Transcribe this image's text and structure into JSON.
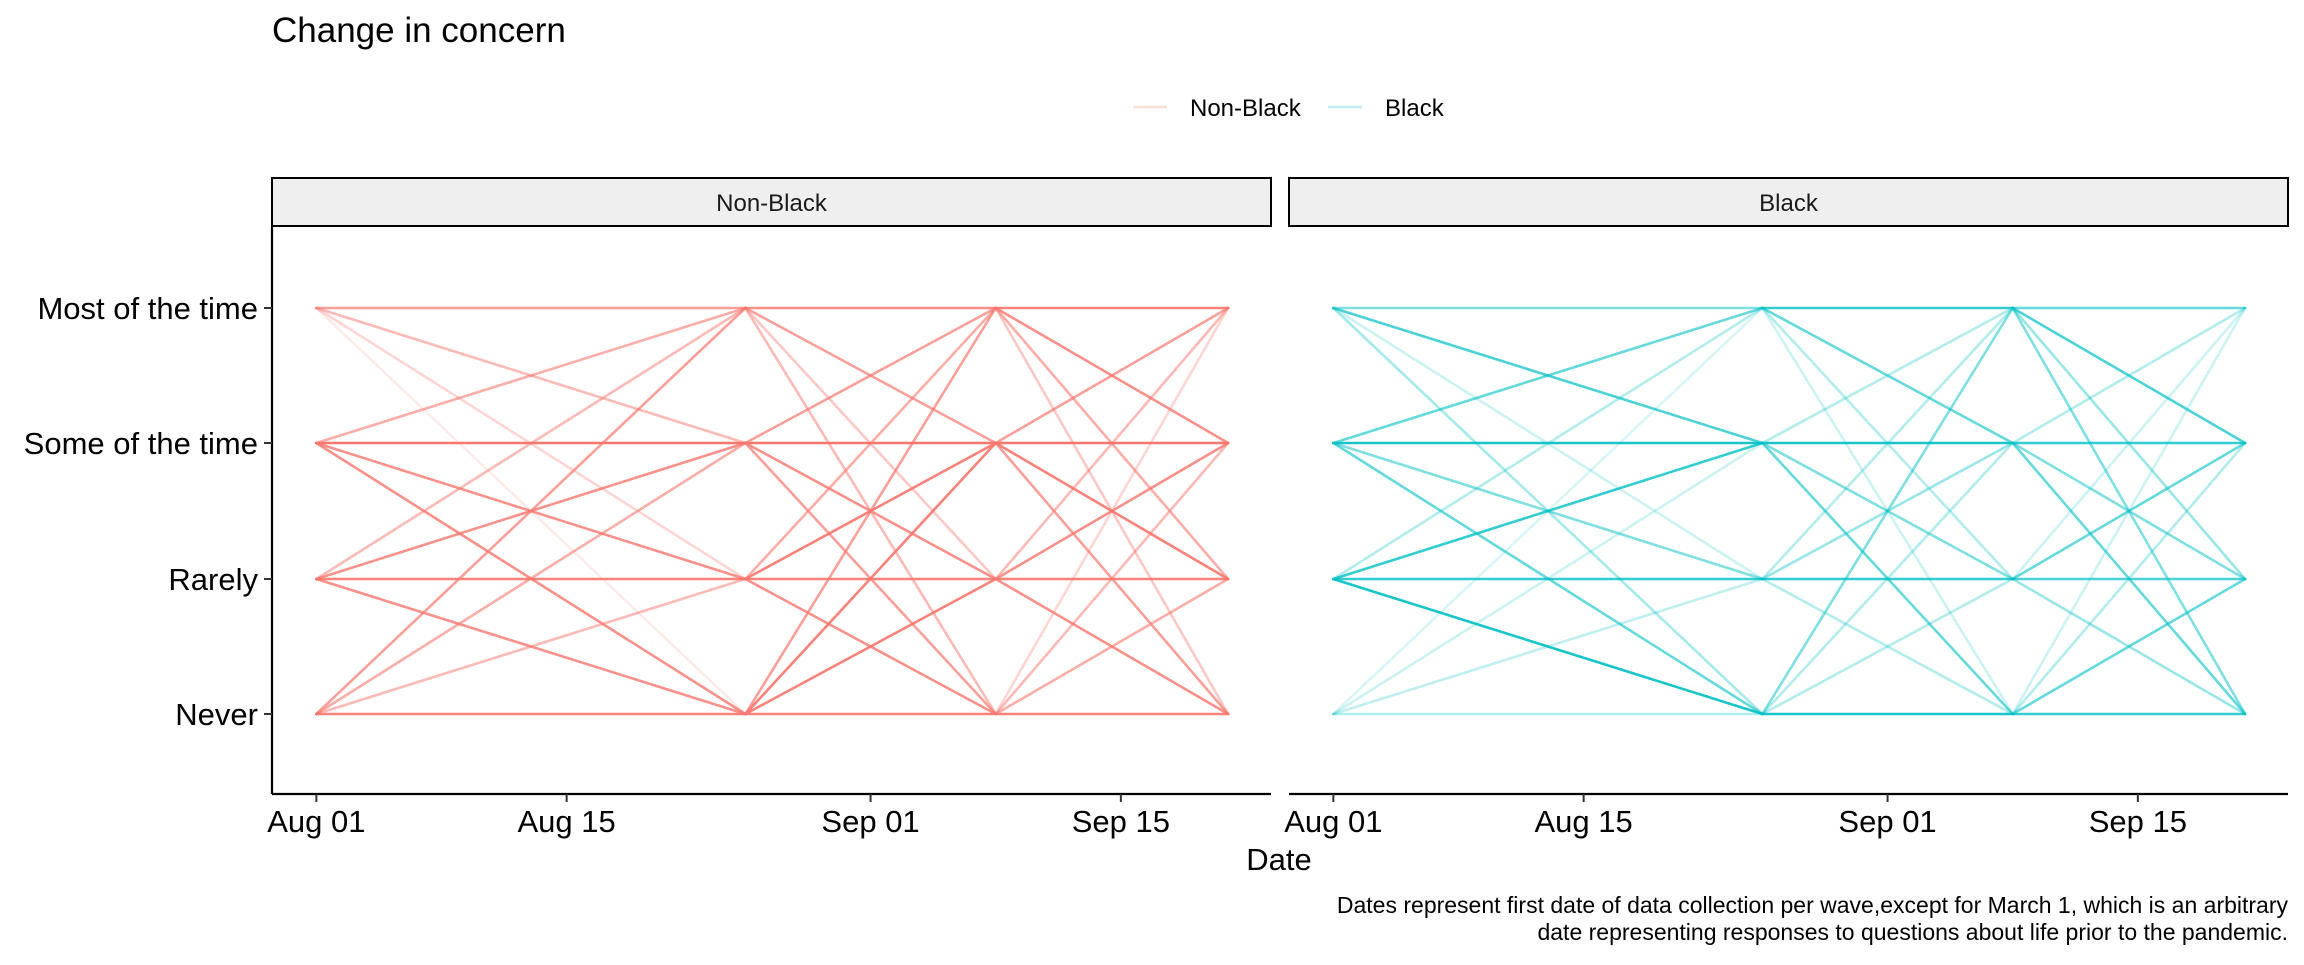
{
  "chart_data": {
    "type": "line",
    "title": "Change in concern",
    "xlabel": "Date",
    "ylabel": "",
    "caption": [
      "Dates represent first date of data collection per wave,except for March 1, which is an arbitrary",
      "date representing responses to questions about life prior to the pandemic."
    ],
    "legend": {
      "position": "top",
      "entries": [
        {
          "name": "Non-Black",
          "color": "#F8766D"
        },
        {
          "name": "Black",
          "color": "#00BFC4"
        }
      ]
    },
    "grid": false,
    "y_levels": [
      "Never",
      "Rarely",
      "Some of the time",
      "Most of the time"
    ],
    "x_range": [
      "2020-07-30",
      "2020-09-25"
    ],
    "x_ticks": [
      {
        "date": "2020-08-01",
        "label": "Aug 01"
      },
      {
        "date": "2020-08-15",
        "label": "Aug 15"
      },
      {
        "date": "2020-09-01",
        "label": "Sep 01"
      },
      {
        "date": "2020-09-15",
        "label": "Sep 15"
      }
    ],
    "waves": [
      "2020-08-01",
      "2020-08-25",
      "2020-09-08",
      "2020-09-21"
    ],
    "panels": [
      {
        "name": "Non-Black",
        "color": "#F8766D",
        "transitions": [
          [
            {
              "from": "Never",
              "to": "Never",
              "weight": 0.9
            },
            {
              "from": "Never",
              "to": "Rarely",
              "weight": 0.5
            },
            {
              "from": "Never",
              "to": "Some of the time",
              "weight": 0.6
            },
            {
              "from": "Never",
              "to": "Most of the time",
              "weight": 0.7
            },
            {
              "from": "Rarely",
              "to": "Never",
              "weight": 0.8
            },
            {
              "from": "Rarely",
              "to": "Rarely",
              "weight": 0.9
            },
            {
              "from": "Rarely",
              "to": "Some of the time",
              "weight": 0.8
            },
            {
              "from": "Rarely",
              "to": "Most of the time",
              "weight": 0.5
            },
            {
              "from": "Some of the time",
              "to": "Never",
              "weight": 0.8
            },
            {
              "from": "Some of the time",
              "to": "Rarely",
              "weight": 0.8
            },
            {
              "from": "Some of the time",
              "to": "Some of the time",
              "weight": 1.0
            },
            {
              "from": "Some of the time",
              "to": "Most of the time",
              "weight": 0.6
            },
            {
              "from": "Most of the time",
              "to": "Never",
              "weight": 0.15
            },
            {
              "from": "Most of the time",
              "to": "Rarely",
              "weight": 0.3
            },
            {
              "from": "Most of the time",
              "to": "Some of the time",
              "weight": 0.5
            },
            {
              "from": "Most of the time",
              "to": "Most of the time",
              "weight": 0.7
            }
          ],
          [
            {
              "from": "Never",
              "to": "Never",
              "weight": 0.9
            },
            {
              "from": "Never",
              "to": "Rarely",
              "weight": 0.9
            },
            {
              "from": "Never",
              "to": "Some of the time",
              "weight": 0.9
            },
            {
              "from": "Never",
              "to": "Most of the time",
              "weight": 0.7
            },
            {
              "from": "Rarely",
              "to": "Never",
              "weight": 0.8
            },
            {
              "from": "Rarely",
              "to": "Rarely",
              "weight": 0.9
            },
            {
              "from": "Rarely",
              "to": "Some of the time",
              "weight": 0.9
            },
            {
              "from": "Rarely",
              "to": "Most of the time",
              "weight": 0.6
            },
            {
              "from": "Some of the time",
              "to": "Never",
              "weight": 0.7
            },
            {
              "from": "Some of the time",
              "to": "Rarely",
              "weight": 0.8
            },
            {
              "from": "Some of the time",
              "to": "Some of the time",
              "weight": 1.0
            },
            {
              "from": "Some of the time",
              "to": "Most of the time",
              "weight": 0.7
            },
            {
              "from": "Most of the time",
              "to": "Never",
              "weight": 0.5
            },
            {
              "from": "Most of the time",
              "to": "Rarely",
              "weight": 0.4
            },
            {
              "from": "Most of the time",
              "to": "Some of the time",
              "weight": 0.7
            },
            {
              "from": "Most of the time",
              "to": "Most of the time",
              "weight": 0.8
            }
          ],
          [
            {
              "from": "Never",
              "to": "Never",
              "weight": 0.9
            },
            {
              "from": "Never",
              "to": "Rarely",
              "weight": 0.6
            },
            {
              "from": "Never",
              "to": "Some of the time",
              "weight": 0.5
            },
            {
              "from": "Never",
              "to": "Most of the time",
              "weight": 0.3
            },
            {
              "from": "Rarely",
              "to": "Never",
              "weight": 0.8
            },
            {
              "from": "Rarely",
              "to": "Rarely",
              "weight": 0.9
            },
            {
              "from": "Rarely",
              "to": "Some of the time",
              "weight": 0.8
            },
            {
              "from": "Rarely",
              "to": "Most of the time",
              "weight": 0.5
            },
            {
              "from": "Some of the time",
              "to": "Never",
              "weight": 0.7
            },
            {
              "from": "Some of the time",
              "to": "Rarely",
              "weight": 0.9
            },
            {
              "from": "Some of the time",
              "to": "Some of the time",
              "weight": 1.0
            },
            {
              "from": "Some of the time",
              "to": "Most of the time",
              "weight": 0.7
            },
            {
              "from": "Most of the time",
              "to": "Never",
              "weight": 0.4
            },
            {
              "from": "Most of the time",
              "to": "Rarely",
              "weight": 0.6
            },
            {
              "from": "Most of the time",
              "to": "Some of the time",
              "weight": 0.8
            },
            {
              "from": "Most of the time",
              "to": "Most of the time",
              "weight": 0.9
            }
          ]
        ]
      },
      {
        "name": "Black",
        "color": "#00BFC4",
        "transitions": [
          [
            {
              "from": "Never",
              "to": "Never",
              "weight": 0.3
            },
            {
              "from": "Never",
              "to": "Rarely",
              "weight": 0.25
            },
            {
              "from": "Never",
              "to": "Some of the time",
              "weight": 0.2
            },
            {
              "from": "Never",
              "to": "Most of the time",
              "weight": 0.15
            },
            {
              "from": "Rarely",
              "to": "Never",
              "weight": 0.9
            },
            {
              "from": "Rarely",
              "to": "Rarely",
              "weight": 0.8
            },
            {
              "from": "Rarely",
              "to": "Some of the time",
              "weight": 0.8
            },
            {
              "from": "Rarely",
              "to": "Most of the time",
              "weight": 0.3
            },
            {
              "from": "Some of the time",
              "to": "Never",
              "weight": 0.6
            },
            {
              "from": "Some of the time",
              "to": "Rarely",
              "weight": 0.5
            },
            {
              "from": "Some of the time",
              "to": "Some of the time",
              "weight": 0.9
            },
            {
              "from": "Some of the time",
              "to": "Most of the time",
              "weight": 0.6
            },
            {
              "from": "Most of the time",
              "to": "Never",
              "weight": 0.35
            },
            {
              "from": "Most of the time",
              "to": "Rarely",
              "weight": 0.2
            },
            {
              "from": "Most of the time",
              "to": "Some of the time",
              "weight": 0.7
            },
            {
              "from": "Most of the time",
              "to": "Most of the time",
              "weight": 0.5
            }
          ],
          [
            {
              "from": "Never",
              "to": "Never",
              "weight": 0.9
            },
            {
              "from": "Never",
              "to": "Rarely",
              "weight": 0.3
            },
            {
              "from": "Never",
              "to": "Some of the time",
              "weight": 0.3
            },
            {
              "from": "Never",
              "to": "Most of the time",
              "weight": 0.5
            },
            {
              "from": "Rarely",
              "to": "Never",
              "weight": 0.3
            },
            {
              "from": "Rarely",
              "to": "Rarely",
              "weight": 0.8
            },
            {
              "from": "Rarely",
              "to": "Some of the time",
              "weight": 0.4
            },
            {
              "from": "Rarely",
              "to": "Most of the time",
              "weight": 0.3
            },
            {
              "from": "Some of the time",
              "to": "Never",
              "weight": 0.6
            },
            {
              "from": "Some of the time",
              "to": "Rarely",
              "weight": 0.5
            },
            {
              "from": "Some of the time",
              "to": "Some of the time",
              "weight": 0.9
            },
            {
              "from": "Some of the time",
              "to": "Most of the time",
              "weight": 0.3
            },
            {
              "from": "Most of the time",
              "to": "Never",
              "weight": 0.2
            },
            {
              "from": "Most of the time",
              "to": "Rarely",
              "weight": 0.3
            },
            {
              "from": "Most of the time",
              "to": "Some of the time",
              "weight": 0.6
            },
            {
              "from": "Most of the time",
              "to": "Most of the time",
              "weight": 0.8
            }
          ],
          [
            {
              "from": "Never",
              "to": "Never",
              "weight": 0.8
            },
            {
              "from": "Never",
              "to": "Rarely",
              "weight": 0.6
            },
            {
              "from": "Never",
              "to": "Some of the time",
              "weight": 0.3
            },
            {
              "from": "Never",
              "to": "Most of the time",
              "weight": 0.2
            },
            {
              "from": "Rarely",
              "to": "Never",
              "weight": 0.4
            },
            {
              "from": "Rarely",
              "to": "Rarely",
              "weight": 0.7
            },
            {
              "from": "Rarely",
              "to": "Some of the time",
              "weight": 0.6
            },
            {
              "from": "Rarely",
              "to": "Most of the time",
              "weight": 0.2
            },
            {
              "from": "Some of the time",
              "to": "Never",
              "weight": 0.6
            },
            {
              "from": "Some of the time",
              "to": "Rarely",
              "weight": 0.5
            },
            {
              "from": "Some of the time",
              "to": "Some of the time",
              "weight": 0.8
            },
            {
              "from": "Some of the time",
              "to": "Most of the time",
              "weight": 0.3
            },
            {
              "from": "Most of the time",
              "to": "Never",
              "weight": 0.5
            },
            {
              "from": "Most of the time",
              "to": "Rarely",
              "weight": 0.4
            },
            {
              "from": "Most of the time",
              "to": "Some of the time",
              "weight": 0.7
            },
            {
              "from": "Most of the time",
              "to": "Most of the time",
              "weight": 0.6
            }
          ]
        ]
      }
    ]
  }
}
